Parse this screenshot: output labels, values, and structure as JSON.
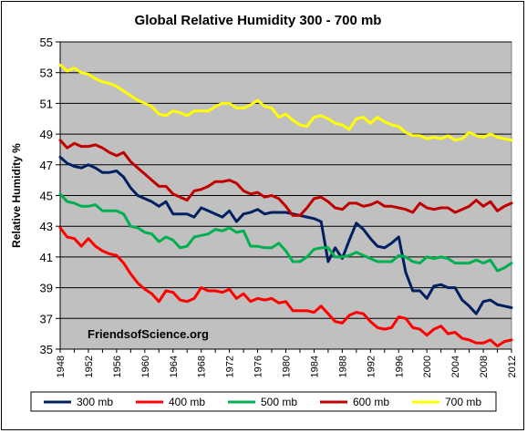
{
  "chart_data": {
    "type": "line",
    "title": "Global Relative Humidity 300 - 700 mb",
    "ylabel": "Relative Humidity %",
    "xlabel": "",
    "ylim": [
      35,
      55
    ],
    "yticks": [
      "55",
      "53",
      "51",
      "49",
      "47",
      "45",
      "43",
      "41",
      "39",
      "37",
      "35"
    ],
    "xlim": [
      1948,
      2012
    ],
    "xticks": [
      "1948",
      "1952",
      "1956",
      "1960",
      "1964",
      "1968",
      "1972",
      "1976",
      "1980",
      "1984",
      "1988",
      "1992",
      "1996",
      "2000",
      "2004",
      "2008",
      "2012"
    ],
    "grid": "horizontal",
    "background": "#c0c0c0",
    "annotation": "FriendsofScience.org",
    "legend_position": "bottom",
    "x": [
      1948,
      1949,
      1950,
      1951,
      1952,
      1953,
      1954,
      1955,
      1956,
      1957,
      1958,
      1959,
      1960,
      1961,
      1962,
      1963,
      1964,
      1965,
      1966,
      1967,
      1968,
      1969,
      1970,
      1971,
      1972,
      1973,
      1974,
      1975,
      1976,
      1977,
      1978,
      1979,
      1980,
      1981,
      1982,
      1983,
      1984,
      1985,
      1986,
      1987,
      1988,
      1989,
      1990,
      1991,
      1992,
      1993,
      1994,
      1995,
      1996,
      1997,
      1998,
      1999,
      2000,
      2001,
      2002,
      2003,
      2004,
      2005,
      2006,
      2007,
      2008,
      2009,
      2010,
      2011,
      2012
    ],
    "series": [
      {
        "name": "300 mb",
        "color": "#002060",
        "values": [
          47.5,
          47.1,
          46.9,
          46.8,
          47.0,
          46.8,
          46.5,
          46.5,
          46.6,
          46.2,
          45.5,
          45.0,
          44.8,
          44.6,
          44.3,
          44.6,
          43.8,
          43.8,
          43.8,
          43.6,
          44.2,
          44.0,
          43.8,
          43.6,
          44.0,
          43.3,
          43.8,
          43.9,
          44.1,
          43.8,
          43.9,
          43.9,
          43.9,
          43.8,
          43.7,
          43.6,
          43.5,
          43.3,
          40.7,
          41.6,
          40.9,
          42.1,
          43.2,
          42.8,
          42.2,
          41.7,
          41.6,
          41.9,
          42.3,
          40.0,
          38.8,
          38.8,
          38.3,
          39.1,
          39.2,
          39.0,
          39.0,
          38.2,
          37.8,
          37.3,
          38.1,
          38.2,
          37.9,
          37.8,
          37.7
        ]
      },
      {
        "name": "400 mb",
        "color": "#ff0000",
        "values": [
          42.9,
          42.3,
          42.2,
          41.7,
          42.2,
          41.7,
          41.4,
          41.2,
          41.1,
          40.6,
          39.9,
          39.3,
          38.9,
          38.6,
          38.1,
          38.8,
          38.7,
          38.2,
          38.1,
          38.3,
          39.0,
          38.8,
          38.8,
          38.7,
          38.9,
          38.3,
          38.6,
          38.1,
          38.3,
          38.2,
          38.3,
          38.0,
          38.1,
          37.5,
          37.5,
          37.5,
          37.4,
          37.8,
          37.3,
          36.8,
          36.7,
          37.2,
          37.4,
          37.3,
          36.8,
          36.4,
          36.3,
          36.4,
          37.1,
          37.0,
          36.4,
          36.3,
          35.9,
          36.3,
          36.5,
          36.0,
          36.1,
          35.7,
          35.6,
          35.4,
          35.4,
          35.6,
          35.2,
          35.5,
          35.6
        ]
      },
      {
        "name": "500 mb",
        "color": "#00b050",
        "values": [
          45.1,
          44.6,
          44.5,
          44.3,
          44.3,
          44.4,
          44.0,
          44.0,
          44.0,
          43.8,
          43.0,
          42.9,
          42.6,
          42.5,
          42.0,
          42.3,
          42.1,
          41.6,
          41.7,
          42.3,
          42.4,
          42.5,
          42.8,
          42.7,
          42.9,
          42.6,
          42.7,
          41.7,
          41.7,
          41.6,
          41.6,
          41.9,
          41.4,
          40.7,
          40.7,
          41.0,
          41.5,
          41.6,
          41.6,
          41.0,
          41.0,
          41.1,
          41.3,
          41.1,
          40.9,
          40.7,
          40.7,
          40.7,
          41.1,
          41.0,
          40.7,
          40.6,
          41.0,
          40.9,
          41.0,
          40.9,
          40.6,
          40.6,
          40.6,
          40.8,
          40.6,
          40.8,
          40.1,
          40.3,
          40.6
        ]
      },
      {
        "name": "600 mb",
        "color": "#c00000",
        "values": [
          48.6,
          48.1,
          48.4,
          48.2,
          48.2,
          48.3,
          48.1,
          47.8,
          47.6,
          47.8,
          47.2,
          46.8,
          46.4,
          46.0,
          45.6,
          45.6,
          45.1,
          44.9,
          44.7,
          45.3,
          45.4,
          45.6,
          45.9,
          45.9,
          46.0,
          45.8,
          45.3,
          45.1,
          45.2,
          44.9,
          45.0,
          44.8,
          44.3,
          43.7,
          43.7,
          44.2,
          44.8,
          44.9,
          44.6,
          44.2,
          44.1,
          44.5,
          44.5,
          44.3,
          44.4,
          44.6,
          44.3,
          44.3,
          44.2,
          44.1,
          43.9,
          44.5,
          44.2,
          44.1,
          44.2,
          44.2,
          43.9,
          44.1,
          44.3,
          44.7,
          44.3,
          44.6,
          44.0,
          44.3,
          44.5
        ]
      },
      {
        "name": "700 mb",
        "color": "#ffff00",
        "values": [
          53.5,
          53.1,
          53.3,
          53.0,
          52.9,
          52.6,
          52.4,
          52.3,
          52.1,
          51.8,
          51.5,
          51.2,
          51.0,
          50.8,
          50.3,
          50.2,
          50.5,
          50.4,
          50.2,
          50.5,
          50.5,
          50.5,
          50.8,
          51.0,
          51.0,
          50.7,
          50.7,
          50.9,
          51.2,
          50.8,
          50.7,
          50.1,
          50.3,
          49.9,
          49.6,
          49.5,
          50.1,
          50.2,
          50.0,
          49.7,
          49.6,
          49.3,
          50.0,
          50.1,
          49.7,
          50.1,
          49.8,
          49.6,
          49.5,
          49.1,
          48.9,
          48.9,
          48.7,
          48.8,
          48.7,
          48.9,
          48.6,
          48.7,
          49.1,
          48.9,
          48.8,
          49.0,
          48.8,
          48.7,
          48.6
        ]
      }
    ]
  }
}
